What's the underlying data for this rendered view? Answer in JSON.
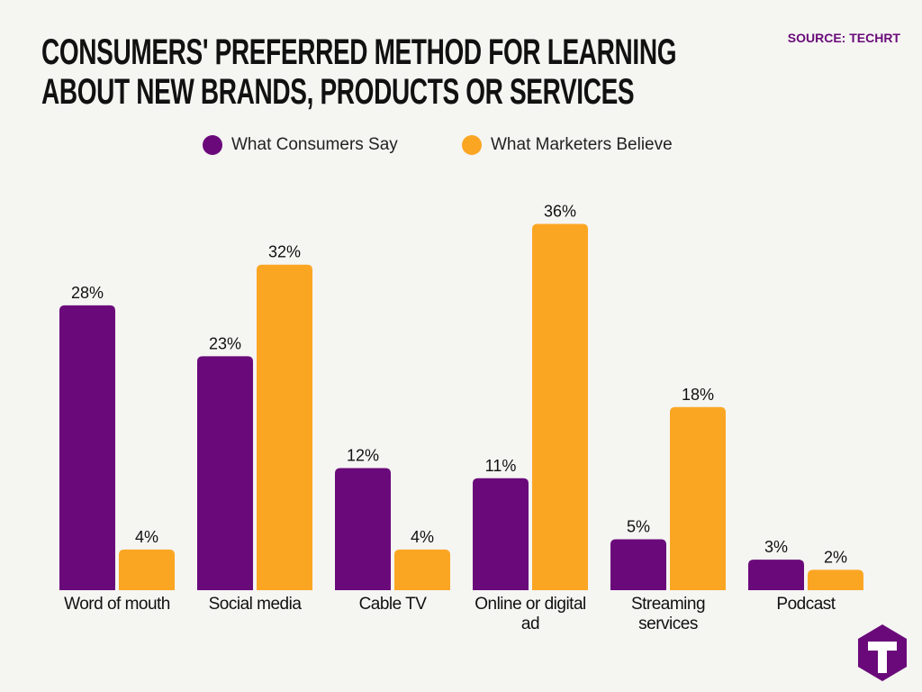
{
  "chart_data": {
    "type": "bar",
    "title": "CONSUMERS' PREFERRED METHOD FOR LEARNING ABOUT NEW BRANDS, PRODUCTS OR SERVICES",
    "source": "SOURCE: TECHRT",
    "categories": [
      "Word of mouth",
      "Social media",
      "Cable TV",
      "Online or digital ad",
      "Streaming services",
      "Podcast"
    ],
    "series": [
      {
        "name": "What Consumers Say",
        "color": "#6a0a7a",
        "values": [
          28,
          23,
          12,
          11,
          5,
          3
        ],
        "value_labels": [
          "28%",
          "23%",
          "12%",
          "11%",
          "5%",
          "3%"
        ]
      },
      {
        "name": "What Marketers Believe",
        "color": "#fba623",
        "values": [
          4,
          32,
          4,
          36,
          18,
          2
        ],
        "value_labels": [
          "4%",
          "32%",
          "4%",
          "36%",
          "18%",
          "2%"
        ]
      }
    ],
    "legend": "top"
  }
}
